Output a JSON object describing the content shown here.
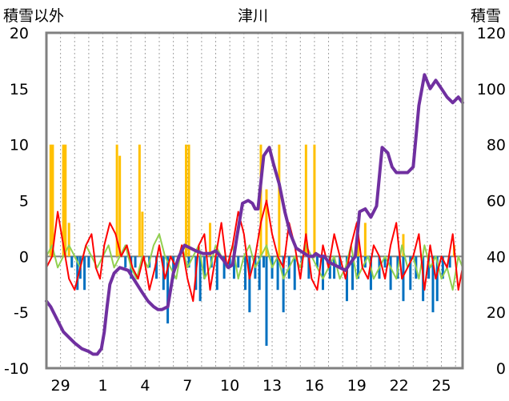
{
  "chart_data": {
    "type": "line",
    "title": "津川",
    "left_axis_label": "積雪以外",
    "right_axis_label": "積雪",
    "left_axis": {
      "min": -10,
      "max": 20,
      "ticks": [
        "-10",
        "-5",
        "0",
        "5",
        "10",
        "15",
        "20"
      ]
    },
    "right_axis": {
      "min": 0,
      "max": 120,
      "ticks": [
        "0",
        "20",
        "40",
        "60",
        "80",
        "100",
        "120"
      ]
    },
    "x_ticks": [
      "29",
      "1",
      "4",
      "7",
      "10",
      "13",
      "16",
      "19",
      "22",
      "25"
    ],
    "x_range_days": [
      0,
      29.5
    ],
    "grid": "vertical dotted",
    "colors": {
      "snow_depth": "#7030a0",
      "temperature": "#ff0000",
      "humidity": "#92d050",
      "snowfall": "#ffc000",
      "negative_bars": "#0070c0",
      "frame": "#808080"
    },
    "series": [
      {
        "key": "snow_depth",
        "axis": "right",
        "x": [
          0.0,
          0.3,
          0.8,
          1.2,
          1.6,
          2.0,
          2.5,
          3.0,
          3.3,
          3.6,
          3.9,
          4.1,
          4.3,
          4.5,
          4.8,
          5.2,
          5.8,
          6.3,
          6.8,
          7.2,
          7.6,
          7.9,
          8.2,
          8.6,
          9.0,
          9.4,
          9.8,
          10.2,
          10.6,
          11.1,
          11.6,
          12.0,
          12.5,
          12.9,
          13.2,
          13.5,
          13.9,
          14.3,
          14.6,
          14.8,
          15.0,
          15.4,
          15.8,
          16.1,
          16.5,
          16.9,
          17.3,
          17.7,
          18.0,
          18.3,
          18.6,
          18.9,
          19.1,
          19.4,
          19.7,
          20.0,
          20.4,
          20.8,
          21.2,
          21.6,
          21.9,
          22.2,
          22.6,
          23.0,
          23.4,
          23.8,
          24.2,
          24.5,
          24.8,
          25.2,
          25.6,
          26.0,
          26.4,
          26.8,
          27.2,
          27.6,
          28.0,
          28.4,
          28.8,
          29.2,
          29.5
        ],
        "values": [
          24,
          22,
          17,
          13,
          11,
          9,
          7,
          6,
          5,
          5,
          7,
          13,
          22,
          30,
          34,
          36,
          35,
          31,
          27,
          24,
          22,
          21,
          21,
          22,
          34,
          40,
          44,
          43,
          42,
          41,
          41,
          42,
          39,
          36,
          37,
          47,
          59,
          60,
          59,
          57,
          57,
          76,
          79,
          73,
          66,
          56,
          48,
          43,
          42,
          41,
          40,
          40,
          41,
          40,
          40,
          38,
          37,
          36,
          35,
          38,
          40,
          56,
          57,
          54,
          58,
          79,
          77,
          72,
          70,
          70,
          70,
          72,
          94,
          105,
          100,
          103,
          100,
          97,
          95,
          97,
          95
        ]
      },
      {
        "key": "temperature",
        "axis": "left",
        "x": [
          0.0,
          0.4,
          0.8,
          1.2,
          1.6,
          2.0,
          2.4,
          2.8,
          3.2,
          3.5,
          3.8,
          4.1,
          4.5,
          4.9,
          5.3,
          5.7,
          6.1,
          6.5,
          6.9,
          7.3,
          7.7,
          8.0,
          8.4,
          8.8,
          9.2,
          9.6,
          10.0,
          10.4,
          10.8,
          11.2,
          11.6,
          12.0,
          12.4,
          12.8,
          13.2,
          13.6,
          14.0,
          14.4,
          14.8,
          15.2,
          15.6,
          16.0,
          16.4,
          16.8,
          17.2,
          17.6,
          18.0,
          18.4,
          18.8,
          19.2,
          19.6,
          20.0,
          20.4,
          20.8,
          21.2,
          21.6,
          22.0,
          22.4,
          22.8,
          23.2,
          23.6,
          24.0,
          24.4,
          24.8,
          25.2,
          25.6,
          26.0,
          26.4,
          26.8,
          27.2,
          27.6,
          28.0,
          28.4,
          28.8,
          29.2,
          29.5
        ],
        "values": [
          -1,
          0,
          4,
          1,
          -2,
          -3,
          -1,
          1,
          2,
          -1,
          -2,
          1,
          3,
          2,
          0,
          1,
          -1,
          -2,
          0,
          -3,
          -1,
          1,
          -2,
          0,
          -1,
          1,
          -2,
          -4,
          1,
          2,
          -3,
          0,
          3,
          -1,
          1,
          4,
          2,
          -2,
          0,
          3,
          5,
          2,
          0,
          -1,
          3,
          1,
          -2,
          2,
          -2,
          -3,
          1,
          -1,
          2,
          0,
          -2,
          1,
          3,
          -1,
          -2,
          1,
          0,
          -2,
          1,
          3,
          -2,
          -1,
          0,
          2,
          -3,
          1,
          -2,
          0,
          -1,
          2,
          -3,
          -1
        ]
      },
      {
        "key": "humidity",
        "axis": "left",
        "x": [
          0.0,
          0.4,
          0.8,
          1.2,
          1.6,
          2.0,
          2.4,
          2.8,
          3.2,
          3.6,
          4.0,
          4.4,
          4.8,
          5.2,
          5.6,
          6.0,
          6.4,
          6.8,
          7.2,
          7.6,
          8.0,
          8.4,
          8.8,
          9.2,
          9.6,
          10.0,
          10.4,
          10.8,
          11.2,
          11.6,
          12.0,
          12.4,
          12.8,
          13.2,
          13.6,
          14.0,
          14.4,
          14.8,
          15.2,
          15.6,
          16.0,
          16.4,
          16.8,
          17.2,
          17.6,
          18.0,
          18.4,
          18.8,
          19.2,
          19.6,
          20.0,
          20.4,
          20.8,
          21.2,
          21.6,
          22.0,
          22.4,
          22.8,
          23.2,
          23.6,
          24.0,
          24.4,
          24.8,
          25.2,
          25.6,
          26.0,
          26.4,
          26.8,
          27.2,
          27.6,
          28.0,
          28.4,
          28.8,
          29.2,
          29.5
        ],
        "values": [
          0,
          1,
          -1,
          0,
          1,
          0,
          -1,
          1,
          0,
          -1,
          0,
          1,
          -1,
          0,
          1,
          -1,
          -2,
          0,
          -1,
          1,
          2,
          0,
          -1,
          -2,
          1,
          -1,
          0,
          1,
          -2,
          -1,
          1,
          0,
          -1,
          1,
          -2,
          0,
          1,
          -1,
          0,
          1,
          -1,
          0,
          -2,
          -1,
          0,
          -1,
          1,
          0,
          -1,
          -2,
          -1,
          0,
          -2,
          -1,
          1,
          -2,
          -1,
          0,
          -2,
          -1,
          0,
          -1,
          -2,
          1,
          -1,
          0,
          -2,
          1,
          -1,
          0,
          -2,
          -1,
          -3,
          0,
          -1
        ]
      }
    ],
    "bars": {
      "snowfall": {
        "axis": "left",
        "x": [
          0.3,
          0.45,
          1.2,
          1.35,
          1.6,
          5.0,
          5.2,
          6.6,
          6.8,
          9.9,
          10.1,
          11.6,
          15.2,
          15.6,
          16.5,
          18.4,
          19.0,
          22.1,
          22.6,
          25.3,
          28.9
        ],
        "values": [
          10,
          10,
          10,
          10,
          3,
          10,
          9,
          10,
          4,
          10,
          10,
          3,
          10,
          6,
          10,
          10,
          10,
          2,
          3,
          2,
          1
        ]
      },
      "negative": {
        "axis": "left",
        "x": [
          1.8,
          2.2,
          2.4,
          2.7,
          3.0,
          5.6,
          6.0,
          6.3,
          7.3,
          7.8,
          8.3,
          8.6,
          9.0,
          10.1,
          10.6,
          10.9,
          11.2,
          11.7,
          12.1,
          12.6,
          13.0,
          13.3,
          13.6,
          14.1,
          14.4,
          14.8,
          15.1,
          15.4,
          15.6,
          16.0,
          16.4,
          16.8,
          17.2,
          17.6,
          18.1,
          18.6,
          19.2,
          19.6,
          20.1,
          20.4,
          20.8,
          21.3,
          21.7,
          22.1,
          22.6,
          23.0,
          23.6,
          24.0,
          24.4,
          24.9,
          25.3,
          25.8,
          26.2,
          26.7,
          27.1,
          27.4,
          27.7,
          28.1,
          28.6
        ],
        "values": [
          -1,
          -3,
          -2,
          -3,
          -1,
          -1,
          -2,
          -1,
          -1,
          -2,
          -3,
          -6,
          -2,
          -1,
          -3,
          -4,
          -2,
          -1,
          -3,
          -2,
          -1,
          -2,
          -1,
          -3,
          -5,
          -2,
          -3,
          -1,
          -8,
          -2,
          -3,
          -5,
          -2,
          -3,
          -1,
          -2,
          -1,
          -3,
          -2,
          -2,
          -1,
          -4,
          -3,
          -2,
          -1,
          -3,
          -2,
          -1,
          -3,
          -2,
          -4,
          -3,
          -2,
          -4,
          -2,
          -5,
          -4,
          -2,
          -1
        ]
      }
    }
  }
}
